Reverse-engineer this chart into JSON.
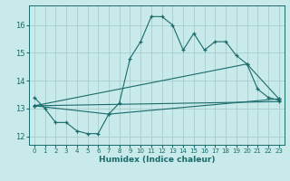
{
  "xlabel": "Humidex (Indice chaleur)",
  "bg_color": "#c8eaea",
  "line_color": "#1a6b6b",
  "grid_color": "#a8cccc",
  "xlim": [
    -0.5,
    23.5
  ],
  "ylim": [
    11.7,
    16.7
  ],
  "yticks": [
    12,
    13,
    14,
    15,
    16
  ],
  "xticks": [
    0,
    1,
    2,
    3,
    4,
    5,
    6,
    7,
    8,
    9,
    10,
    11,
    12,
    13,
    14,
    15,
    16,
    17,
    18,
    19,
    20,
    21,
    22,
    23
  ],
  "series1_x": [
    0,
    1,
    2,
    3,
    4,
    5,
    6,
    7,
    8,
    9,
    10,
    11,
    12,
    13,
    14,
    15,
    16,
    17,
    18,
    19,
    20,
    21,
    22,
    23
  ],
  "series1_y": [
    13.4,
    13.0,
    12.5,
    12.5,
    12.2,
    12.1,
    12.1,
    12.8,
    13.2,
    14.8,
    15.4,
    16.3,
    16.3,
    16.0,
    15.1,
    15.7,
    15.1,
    15.4,
    15.4,
    14.9,
    14.6,
    13.7,
    13.4,
    13.3
  ],
  "series2_x": [
    0,
    23
  ],
  "series2_y": [
    13.1,
    13.25
  ],
  "series3_x": [
    0,
    20,
    23
  ],
  "series3_y": [
    13.1,
    14.6,
    13.35
  ],
  "series4_x": [
    0,
    7,
    23
  ],
  "series4_y": [
    13.1,
    12.8,
    13.35
  ]
}
